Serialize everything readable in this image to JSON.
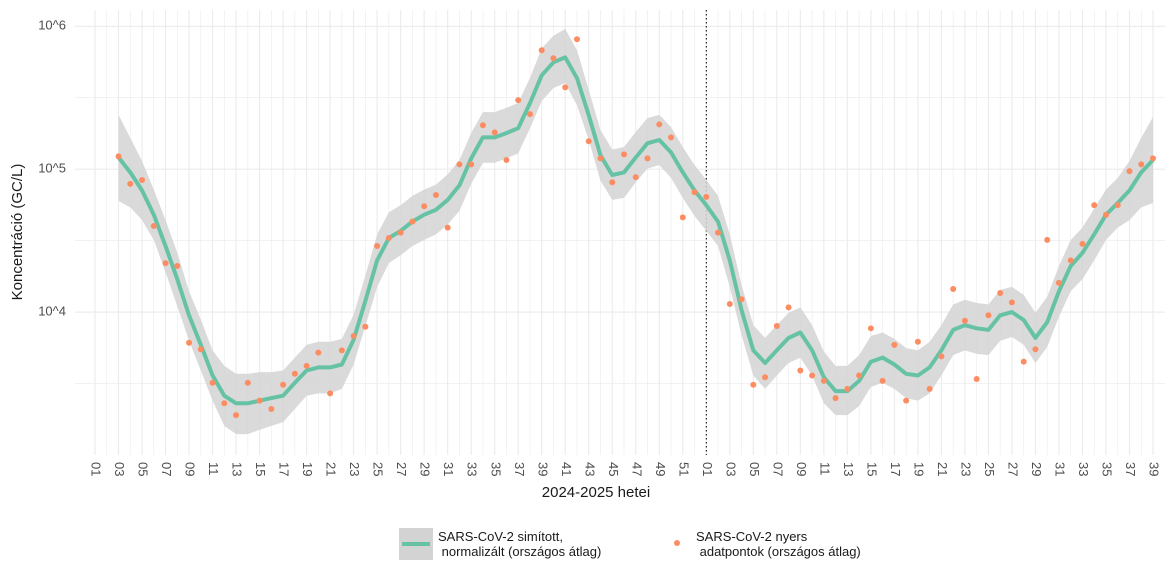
{
  "chart_data": {
    "type": "line",
    "x_label": "2024-2025 hetei",
    "y_label": "Koncentráció (GC/L)",
    "log_y": true,
    "grid": true,
    "ylim": [
      1000,
      1300000
    ],
    "yticks": [
      {
        "value": 10000,
        "label": "10^4"
      },
      {
        "value": 100000,
        "label": "10^5"
      },
      {
        "value": 1000000,
        "label": "10^6"
      }
    ],
    "categories": [
      "01",
      null,
      "03",
      null,
      "05",
      null,
      "07",
      null,
      "09",
      null,
      "11",
      null,
      "13",
      null,
      "15",
      null,
      "17",
      null,
      "19",
      null,
      "21",
      null,
      "23",
      null,
      "25",
      null,
      "27",
      null,
      "29",
      null,
      "31",
      null,
      "33",
      null,
      "35",
      null,
      "37",
      null,
      "39",
      null,
      "41",
      null,
      "43",
      null,
      "45",
      null,
      "47",
      null,
      "49",
      null,
      "51",
      null,
      "01",
      null,
      "03",
      null,
      "05",
      null,
      "07",
      null,
      "09",
      null,
      "11",
      null,
      "13",
      null,
      "15",
      null,
      "17",
      null,
      "19",
      null,
      "21",
      null,
      "23",
      null,
      "25",
      null,
      "27",
      null,
      "29",
      null,
      "31",
      null,
      "33",
      null,
      "35",
      null,
      "37",
      null,
      "39"
    ],
    "series": [
      {
        "name": "SARS-CoV-2 simított,\n normalizált (országos átlag)",
        "type": "line",
        "color": "#66c2a5",
        "band_color": "#d3d3d3",
        "values": [
          null,
          null,
          121000,
          95000,
          71000,
          48000,
          29000,
          17000,
          9500,
          5900,
          3600,
          2600,
          2300,
          2300,
          2400,
          2500,
          2600,
          3200,
          3900,
          4100,
          4100,
          4300,
          6400,
          12000,
          23000,
          33000,
          37000,
          43000,
          48000,
          52000,
          61000,
          77000,
          119000,
          167000,
          167000,
          179000,
          194000,
          290000,
          454000,
          560000,
          607000,
          433000,
          239000,
          125000,
          91000,
          95000,
          121000,
          152000,
          160000,
          131000,
          95000,
          71000,
          56000,
          43000,
          23000,
          10300,
          5400,
          4400,
          5400,
          6600,
          7200,
          5400,
          3500,
          2800,
          2800,
          3300,
          4500,
          4800,
          4300,
          3700,
          3600,
          4100,
          5400,
          7500,
          8100,
          7700,
          7500,
          9500,
          10000,
          8800,
          6600,
          8500,
          14000,
          21000,
          26000,
          35000,
          48000,
          58000,
          71000,
          95000,
          116000
        ],
        "lower": [
          null,
          null,
          60000,
          54000,
          44000,
          32000,
          19000,
          11000,
          6300,
          3900,
          2400,
          1600,
          1400,
          1400,
          1500,
          1600,
          1700,
          2100,
          2600,
          2700,
          2700,
          2900,
          4300,
          8000,
          15000,
          22000,
          25000,
          29000,
          32000,
          35000,
          41000,
          51000,
          79000,
          111000,
          111000,
          119000,
          129000,
          193000,
          300000,
          370000,
          400000,
          280000,
          160000,
          83000,
          61000,
          63000,
          81000,
          101000,
          107000,
          87000,
          63000,
          47000,
          37000,
          29000,
          15000,
          6900,
          3600,
          2900,
          3600,
          4400,
          4800,
          3600,
          2300,
          1900,
          1900,
          2200,
          3000,
          3200,
          2900,
          2500,
          2400,
          2700,
          3600,
          5000,
          5400,
          5100,
          5000,
          6300,
          6700,
          5900,
          4400,
          5700,
          9300,
          14000,
          17000,
          23000,
          32000,
          39000,
          44000,
          54000,
          58000
        ],
        "upper": [
          null,
          null,
          240000,
          166000,
          114000,
          72000,
          44000,
          26000,
          14000,
          8900,
          5400,
          4200,
          3700,
          3700,
          3800,
          3800,
          3900,
          4800,
          5900,
          6200,
          6200,
          6500,
          9600,
          18000,
          35000,
          50000,
          56000,
          65000,
          72000,
          78000,
          92000,
          116000,
          179000,
          251000,
          251000,
          269000,
          291000,
          435000,
          700000,
          860000,
          960000,
          680000,
          360000,
          188000,
          137000,
          143000,
          182000,
          228000,
          240000,
          197000,
          143000,
          107000,
          84000,
          65000,
          35000,
          15500,
          8100,
          6600,
          8100,
          9900,
          10800,
          8100,
          5300,
          4200,
          4200,
          5000,
          6800,
          7200,
          6500,
          5600,
          5400,
          6200,
          8100,
          11300,
          12200,
          11600,
          11300,
          14300,
          15000,
          13200,
          9900,
          12800,
          21000,
          32000,
          39000,
          53000,
          72000,
          87000,
          114000,
          166000,
          232000
        ]
      },
      {
        "name": "SARS-CoV-2 nyers\n adatpontok (országos átlag)",
        "type": "scatter",
        "color": "#fc8d62",
        "values": [
          null,
          null,
          123000,
          79000,
          84000,
          40000,
          22000,
          21000,
          6100,
          5500,
          3200,
          2300,
          1900,
          3200,
          2400,
          2100,
          3100,
          3700,
          4200,
          5200,
          2700,
          5400,
          6800,
          7900,
          29000,
          33000,
          36000,
          43000,
          55000,
          66000,
          39000,
          108000,
          108000,
          203000,
          181000,
          116000,
          304000,
          243000,
          680000,
          597000,
          374000,
          811000,
          157000,
          119000,
          81000,
          127000,
          88000,
          119000,
          206000,
          167000,
          46000,
          69000,
          64000,
          36000,
          11400,
          12300,
          3100,
          3500,
          8000,
          10800,
          3900,
          3600,
          3300,
          2500,
          2900,
          3600,
          7700,
          3300,
          5900,
          2400,
          6200,
          2900,
          4900,
          14500,
          8700,
          3400,
          9500,
          13600,
          11700,
          4500,
          5500,
          32000,
          16000,
          23000,
          30000,
          56000,
          48000,
          56000,
          97000,
          108000,
          119000
        ]
      }
    ]
  }
}
